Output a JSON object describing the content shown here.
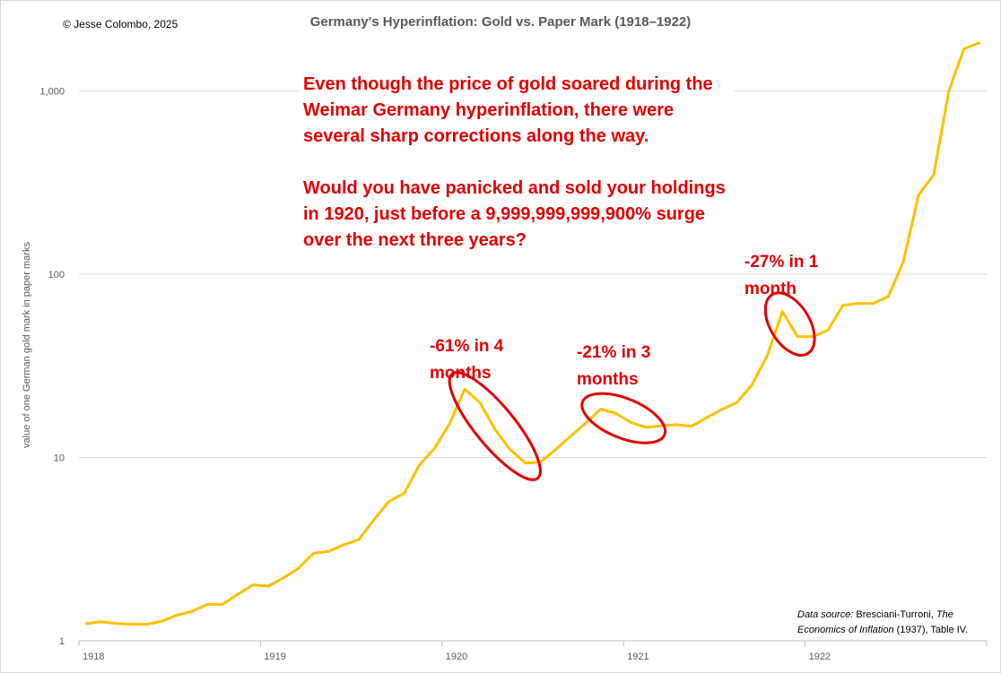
{
  "copyright": "© Jesse Colombo, 2025",
  "chart_data": {
    "type": "line",
    "title": "Germany's Hyperinflation: Gold vs. Paper Mark (1918–1922)",
    "xlabel": "",
    "ylabel": "value of one German gold mark in paper marks",
    "y_scale": "log",
    "ylim": [
      1,
      2000
    ],
    "y_ticks": [
      1,
      10,
      100,
      1000
    ],
    "y_tick_labels": [
      "1",
      "10",
      "100",
      "1,000"
    ],
    "x_tick_labels": [
      "1918",
      "1919",
      "1920",
      "1921",
      "1922"
    ],
    "x_range_months": [
      "1918-01",
      "1922-12"
    ],
    "grid": "horizontal",
    "line_color": "#FFC000",
    "series": [
      {
        "months": [
          "1918-01",
          "1918-02",
          "1918-03",
          "1918-04",
          "1918-05",
          "1918-06",
          "1918-07",
          "1918-08",
          "1918-09",
          "1918-10",
          "1918-11",
          "1918-12",
          "1919-01",
          "1919-02",
          "1919-03",
          "1919-04",
          "1919-05",
          "1919-06",
          "1919-07",
          "1919-08",
          "1919-09",
          "1919-10",
          "1919-11",
          "1919-12",
          "1920-01",
          "1920-02",
          "1920-03",
          "1920-04",
          "1920-05",
          "1920-06",
          "1920-07",
          "1920-08",
          "1920-09",
          "1920-10",
          "1920-11",
          "1920-12",
          "1921-01",
          "1921-02",
          "1921-03",
          "1921-04",
          "1921-05",
          "1921-06",
          "1921-07",
          "1921-08",
          "1921-09",
          "1921-10",
          "1921-11",
          "1921-12",
          "1922-01",
          "1922-02",
          "1922-03",
          "1922-04",
          "1922-05",
          "1922-06",
          "1922-07",
          "1922-08",
          "1922-09",
          "1922-10",
          "1922-11",
          "1922-12"
        ],
        "values": [
          1.24,
          1.27,
          1.24,
          1.23,
          1.23,
          1.28,
          1.38,
          1.45,
          1.58,
          1.58,
          1.79,
          2.02,
          1.98,
          2.2,
          2.48,
          3.0,
          3.07,
          3.34,
          3.56,
          4.58,
          5.77,
          6.38,
          9.09,
          11.2,
          15.3,
          23.6,
          19.97,
          14.25,
          11.06,
          9.34,
          9.42,
          11.03,
          13.06,
          15.42,
          18.38,
          17.38,
          15.5,
          14.6,
          14.9,
          15.1,
          14.8,
          16.5,
          18.3,
          20.0,
          25.0,
          36.0,
          62.6,
          45.7,
          45.7,
          49.5,
          67.7,
          69.3,
          69.3,
          75.6,
          117.5,
          270.3,
          349.2,
          1000.0,
          1700.0,
          1830.0
        ]
      }
    ],
    "annotations": [
      {
        "label": "-61% in 4 months",
        "from": "1920-02",
        "to": "1920-06"
      },
      {
        "label": "-21% in 3 months",
        "from": "1920-11",
        "to": "1921-02"
      },
      {
        "label": "-27% in 1 month",
        "from": "1921-11",
        "to": "1921-12"
      }
    ],
    "callout": "Even though the price of gold soared during the Weimar Germany hyperinflation, there were several sharp corrections along the way.\n\nWould you have panicked and sold your holdings in 1920, just before a 9,999,999,999,900% surge over the next three years?",
    "source": {
      "prefix": "Data source:",
      "author": " Bresciani-Turroni, ",
      "book": "The Economics of Inflation",
      "suffix": " (1937), Table IV."
    }
  }
}
